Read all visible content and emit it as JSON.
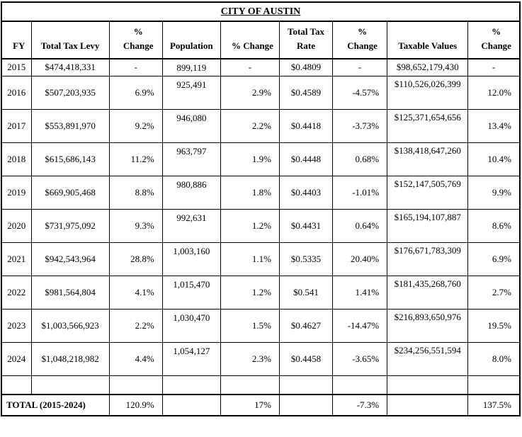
{
  "title": "CITY OF AUSTIN",
  "colors": {
    "text": "#000000",
    "background": "#ffffff",
    "border": "#000000"
  },
  "table": {
    "headers": [
      {
        "line1": "FY"
      },
      {
        "line1": "Total Tax Levy"
      },
      {
        "line1": "%",
        "line2": "Change"
      },
      {
        "line1": "Population"
      },
      {
        "line1": "% Change"
      },
      {
        "line1": "Total Tax",
        "line2": "Rate"
      },
      {
        "line1": "%",
        "line2": "Change"
      },
      {
        "line1": "Taxable Values"
      },
      {
        "line1": "%",
        "line2": "Change"
      }
    ],
    "rows": [
      {
        "fy": "2015",
        "levy": "$474,418,331",
        "levy_pct": "-",
        "pop": "899,119",
        "pop_pct": "-",
        "rate": "$0.4809",
        "rate_pct": "-",
        "taxable": "$98,652,179,430",
        "taxable_pct": "-"
      },
      {
        "fy": "2016",
        "levy": "$507,203,935",
        "levy_pct": "6.9%",
        "pop": "925,491",
        "pop_pct": "2.9%",
        "rate": "$0.4589",
        "rate_pct": "-4.57%",
        "taxable": "$110,526,026,399",
        "taxable_pct": "12.0%"
      },
      {
        "fy": "2017",
        "levy": "$553,891,970",
        "levy_pct": "9.2%",
        "pop": "946,080",
        "pop_pct": "2.2%",
        "rate": "$0.4418",
        "rate_pct": "-3.73%",
        "taxable": "$125,371,654,656",
        "taxable_pct": "13.4%"
      },
      {
        "fy": "2018",
        "levy": "$615,686,143",
        "levy_pct": "11.2%",
        "pop": "963,797",
        "pop_pct": "1.9%",
        "rate": "$0.4448",
        "rate_pct": "0.68%",
        "taxable": "$138,418,647,260",
        "taxable_pct": "10.4%"
      },
      {
        "fy": "2019",
        "levy": "$669,905,468",
        "levy_pct": "8.8%",
        "pop": "980,886",
        "pop_pct": "1.8%",
        "rate": "$0.4403",
        "rate_pct": "-1.01%",
        "taxable": "$152,147,505,769",
        "taxable_pct": "9.9%"
      },
      {
        "fy": "2020",
        "levy": "$731,975,092",
        "levy_pct": "9.3%",
        "pop": "992,631",
        "pop_pct": "1.2%",
        "rate": "$0.4431",
        "rate_pct": "0.64%",
        "taxable": "$165,194,107,887",
        "taxable_pct": "8.6%"
      },
      {
        "fy": "2021",
        "levy": "$942,543,964",
        "levy_pct": "28.8%",
        "pop": "1,003,160",
        "pop_pct": "1.1%",
        "rate": "$0.5335",
        "rate_pct": "20.40%",
        "taxable": "$176,671,783,309",
        "taxable_pct": "6.9%"
      },
      {
        "fy": "2022",
        "levy": "$981,564,804",
        "levy_pct": "4.1%",
        "pop": "1,015,470",
        "pop_pct": "1.2%",
        "rate": "$0.541",
        "rate_pct": "1.41%",
        "taxable": "$181,435,268,760",
        "taxable_pct": "2.7%"
      },
      {
        "fy": "2023",
        "levy": "$1,003,566,923",
        "levy_pct": "2.2%",
        "pop": "1,030,470",
        "pop_pct": "1.5%",
        "rate": "$0.4627",
        "rate_pct": "-14.47%",
        "taxable": "$216,893,650,976",
        "taxable_pct": "19.5%"
      },
      {
        "fy": "2024",
        "levy": "$1,048,218,982",
        "levy_pct": "4.4%",
        "pop": "1,054,127",
        "pop_pct": "2.3%",
        "rate": "$0.4458",
        "rate_pct": "-3.65%",
        "taxable": "$234,256,551,594",
        "taxable_pct": "8.0%"
      }
    ],
    "total": {
      "label": "TOTAL (2015-2024)",
      "levy_pct": "120.9%",
      "pop_pct": "17%",
      "rate_pct": "-7.3%",
      "taxable_pct": "137.5%"
    }
  }
}
